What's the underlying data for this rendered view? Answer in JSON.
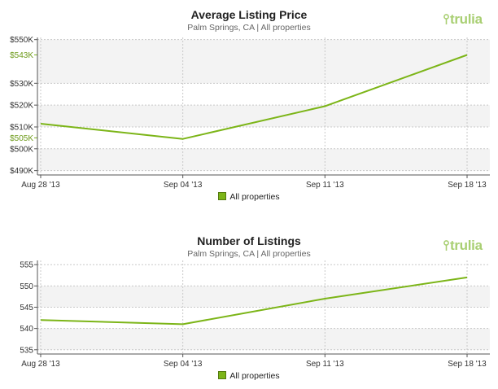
{
  "brand": {
    "logo_text": "trulia",
    "logo_color": "#a9cf73",
    "line_color": "#7cb518"
  },
  "chart_data": [
    {
      "type": "line",
      "title": "Average Listing Price",
      "subtitle": "Palm Springs, CA | All properties",
      "categories": [
        "Aug 28 '13",
        "Sep 04 '13",
        "Sep 11 '13",
        "Sep 18 '13"
      ],
      "series": [
        {
          "name": "All properties",
          "values": [
            511500,
            504500,
            519500,
            543000
          ]
        }
      ],
      "ylim": [
        488000,
        551000
      ],
      "yticks": [
        "$490K",
        "$500K",
        "$510K",
        "$520K",
        "$530K",
        "$550K"
      ],
      "highlight_ticks": [
        "$505K",
        "$543K"
      ],
      "grid": true,
      "legend": "bottom-center"
    },
    {
      "type": "line",
      "title": "Number of Listings",
      "subtitle": "Palm Springs, CA | All properties",
      "categories": [
        "Aug 28 '13",
        "Sep 04 '13",
        "Sep 11 '13",
        "Sep 18 '13"
      ],
      "series": [
        {
          "name": "All properties",
          "values": [
            542,
            541,
            547,
            552
          ]
        }
      ],
      "ylim": [
        534,
        556
      ],
      "yticks": [
        "535",
        "540",
        "545",
        "550",
        "555"
      ],
      "grid": true,
      "legend": "bottom-center"
    }
  ]
}
